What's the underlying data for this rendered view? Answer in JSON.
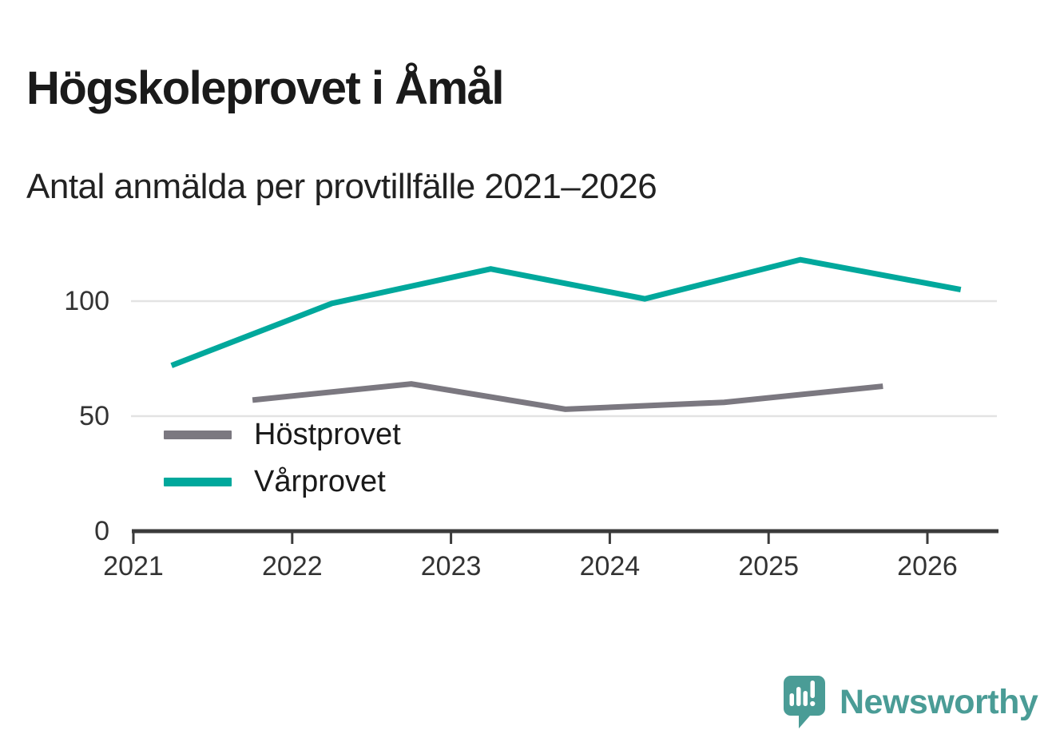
{
  "header": {
    "title": "Högskoleprovet i Åmål",
    "subtitle": "Antal anmälda per provtillfälle 2021–2026"
  },
  "chart_data": {
    "type": "line",
    "title": "Högskoleprovet i Åmål",
    "subtitle": "Antal anmälda per provtillfälle 2021–2026",
    "xlabel": "",
    "ylabel": "",
    "x_ticks": [
      2021,
      2022,
      2023,
      2024,
      2025,
      2026
    ],
    "y_ticks": [
      0,
      50,
      100
    ],
    "xlim": [
      2021,
      2026.45
    ],
    "ylim": [
      0,
      128
    ],
    "grid": "horizontal light gray lines at 50 and 100",
    "legend_position": "inside bottom-left",
    "series": [
      {
        "name": "Höstprovet",
        "color": "#7b7880",
        "x": [
          2021.75,
          2022.75,
          2023.72,
          2024.72,
          2025.72
        ],
        "values": [
          57,
          64,
          53,
          56,
          63
        ]
      },
      {
        "name": "Vårprovet",
        "color": "#00a89c",
        "x": [
          2021.24,
          2022.25,
          2023.25,
          2024.22,
          2025.2,
          2026.21
        ],
        "values": [
          72,
          99,
          114,
          101,
          118,
          105
        ]
      }
    ]
  },
  "colors": {
    "axis": "#3b3b3b",
    "grid": "#e3e3e3",
    "text": "#1a1a1a",
    "tick_text": "#333333"
  },
  "footer": {
    "brand": "Newsworthy",
    "brand_color": "#4a9c96"
  }
}
